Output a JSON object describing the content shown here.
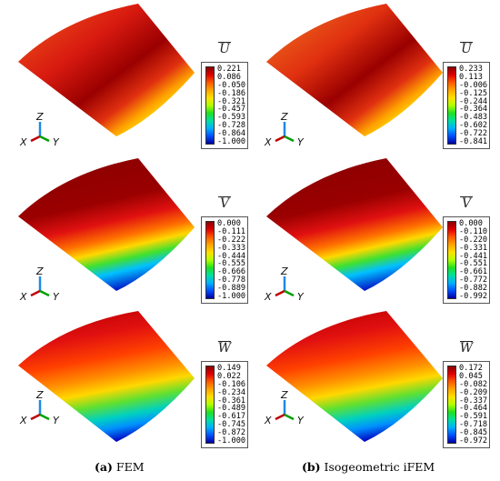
{
  "panels": [
    {
      "id": "fem-u",
      "legend_title": "U",
      "palette": "u",
      "values": [
        "0.221",
        "0.086",
        "-0.050",
        "-0.186",
        "-0.321",
        "-0.457",
        "-0.593",
        "-0.728",
        "-0.864",
        "-1.000"
      ]
    },
    {
      "id": "ifem-u",
      "legend_title": "U",
      "palette": "u",
      "values": [
        "0.233",
        "0.113",
        "-0.006",
        "-0.125",
        "-0.244",
        "-0.364",
        "-0.483",
        "-0.602",
        "-0.722",
        "-0.841"
      ]
    },
    {
      "id": "fem-v",
      "legend_title": "V",
      "palette": "v",
      "values": [
        "0.000",
        "-0.111",
        "-0.222",
        "-0.333",
        "-0.444",
        "-0.555",
        "-0.666",
        "-0.778",
        "-0.889",
        "-1.000"
      ]
    },
    {
      "id": "ifem-v",
      "legend_title": "V",
      "palette": "v",
      "values": [
        "0.000",
        "-0.110",
        "-0.220",
        "-0.331",
        "-0.441",
        "-0.551",
        "-0.661",
        "-0.772",
        "-0.882",
        "-0.992"
      ]
    },
    {
      "id": "fem-w",
      "legend_title": "W",
      "palette": "w",
      "values": [
        "0.149",
        "0.022",
        "-0.106",
        "-0.234",
        "-0.361",
        "-0.489",
        "-0.617",
        "-0.745",
        "-0.872",
        "-1.000"
      ]
    },
    {
      "id": "ifem-w",
      "legend_title": "W",
      "palette": "w",
      "values": [
        "0.172",
        "0.045",
        "-0.082",
        "-0.209",
        "-0.337",
        "-0.464",
        "-0.591",
        "-0.718",
        "-0.845",
        "-0.972"
      ]
    }
  ],
  "triad": {
    "z": "Z",
    "x": "X",
    "y": "Y"
  },
  "captions": {
    "left_letter": "(a)",
    "left_text": " FEM",
    "right_letter": "(b)",
    "right_text": " Isogeometric iFEM"
  },
  "colors": {
    "dark_red": "#8b0000",
    "red": "#e00000",
    "orange": "#ff6a00",
    "yellow": "#ffd800",
    "green": "#20d020",
    "cyan": "#00c8ff",
    "blue": "#0020d0",
    "triad_x": "#c00000",
    "triad_y": "#00a000",
    "triad_z": "#1e88e5"
  }
}
